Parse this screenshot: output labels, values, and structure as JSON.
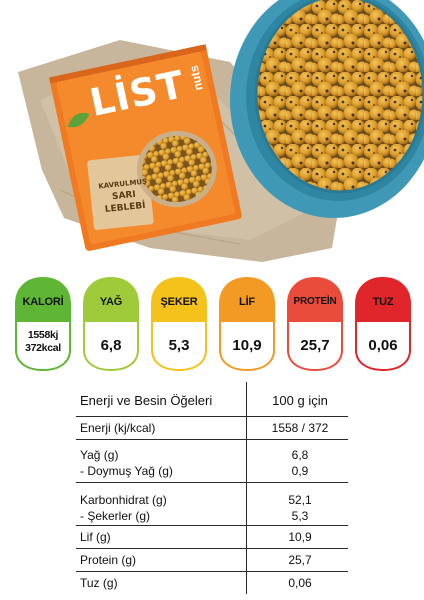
{
  "package": {
    "brand": "LİST",
    "sub_brand": "nuts",
    "product_lines": [
      "KAVRULMUŞ",
      "SARI",
      "LEBLEBİ"
    ]
  },
  "badges": [
    {
      "label": "KALORİ",
      "value_line1": "1558kj",
      "value_line2": "372kcal",
      "color": "#5fb635"
    },
    {
      "label": "YAĞ",
      "value": "6,8",
      "color": "#9fcb3b"
    },
    {
      "label": "ŞEKER",
      "value": "5,3",
      "color": "#f5c21c"
    },
    {
      "label": "LİF",
      "value": "10,9",
      "color": "#f39a24"
    },
    {
      "label": "PROTEİN",
      "value": "25,7",
      "color": "#ea4c3c"
    },
    {
      "label": "TUZ",
      "value": "0,06",
      "color": "#e0262b"
    }
  ],
  "table": {
    "header": {
      "name": "Enerji ve Besin Öğeleri",
      "value": "100 g için"
    },
    "rows": [
      {
        "name": "Enerji (kj/kcal)",
        "value": "1558 / 372"
      },
      {
        "name": "Yağ (g)",
        "value": "6,8",
        "sub_name": "- Doymuş Yağ (g)",
        "sub_value": "0,9"
      },
      {
        "name": "Karbonhidrat (g)",
        "value": "52,1",
        "sub_name": "- Şekerler (g)",
        "sub_value": "5,3"
      },
      {
        "name": "Lif (g)",
        "value": "10,9"
      },
      {
        "name": "Protein (g)",
        "value": "25,7"
      },
      {
        "name": "Tuz (g)",
        "value": "0,06"
      }
    ]
  }
}
